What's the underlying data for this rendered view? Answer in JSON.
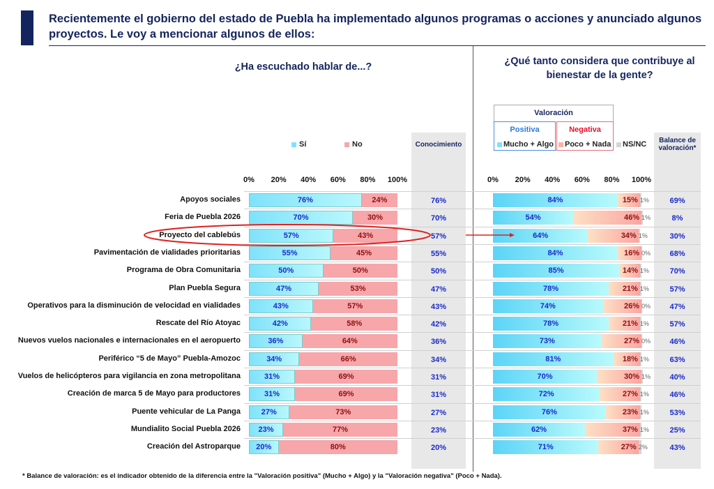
{
  "title": "Recientemente el gobierno del estado de Puebla ha implementado algunos programas o acciones y anunciado algunos proyectos. Le voy a mencionar algunos de ellos:",
  "footnote": "* Balance de valoración: es el indicador obtenido de la diferencia entre la \"Valoración positiva\" (Mucho + Algo) y la \"Valoración negativa\" (Poco + Nada).",
  "colors": {
    "navy": "#14245e",
    "si": "#7fe2fb",
    "no": "#f7a6aa",
    "positive": "#5cd4f7",
    "negative": "#fba5a2",
    "nsnc": "#d5d5d5",
    "highlight": "#e02020"
  },
  "chart_data": [
    {
      "type": "bar",
      "orientation": "horizontal",
      "stacked": true,
      "title": "¿Ha escuchado hablar de...?",
      "xlim": [
        0,
        100
      ],
      "ticks": [
        "0%",
        "20%",
        "40%",
        "60%",
        "80%",
        "100%"
      ],
      "legend": [
        "Sí",
        "No"
      ],
      "extra_column_header": "Conocimiento",
      "categories": [
        "Apoyos sociales",
        "Feria de Puebla 2026",
        "Proyecto del cablebús",
        "Pavimentación de vialidades prioritarias",
        "Programa de Obra Comunitaria",
        "Plan Puebla Segura",
        "Operativos para la disminución de velocidad en vialidades",
        "Rescate del Río Atoyac",
        "Nuevos vuelos nacionales e internacionales en el aeropuerto",
        "Periférico “5 de Mayo” Puebla-Amozoc",
        "Vuelos de helicópteros para vigilancia en zona metropolitana",
        "Creación de marca 5 de Mayo para productores",
        "Puente vehicular de La Panga",
        "Mundialito Social Puebla 2026",
        "Creación del Astroparque"
      ],
      "series": [
        {
          "name": "Sí",
          "values": [
            76,
            70,
            57,
            55,
            50,
            47,
            43,
            42,
            36,
            34,
            31,
            31,
            27,
            23,
            20
          ]
        },
        {
          "name": "No",
          "values": [
            24,
            30,
            43,
            45,
            50,
            53,
            57,
            58,
            64,
            66,
            69,
            69,
            73,
            77,
            80
          ]
        }
      ],
      "highlighted_category": "Proyecto del cablebús"
    },
    {
      "type": "bar",
      "orientation": "horizontal",
      "stacked": true,
      "title": "¿Qué tanto considera que contribuye al bienestar de la gente?",
      "xlim": [
        0,
        100
      ],
      "ticks": [
        "0%",
        "20%",
        "40%",
        "60%",
        "80%",
        "100%"
      ],
      "legend_title": "Valoración",
      "legend_groups": [
        "Positiva",
        "Negativa"
      ],
      "legend": [
        "Mucho + Algo",
        "Poco + Nada",
        "NS/NC"
      ],
      "extra_column_header": "Balance de valoración*",
      "series": [
        {
          "name": "Mucho + Algo",
          "values": [
            84,
            54,
            64,
            84,
            85,
            78,
            74,
            78,
            73,
            81,
            70,
            72,
            76,
            62,
            71
          ]
        },
        {
          "name": "Poco + Nada",
          "values": [
            15,
            46,
            34,
            16,
            14,
            21,
            26,
            21,
            27,
            18,
            30,
            27,
            23,
            37,
            27
          ]
        },
        {
          "name": "NS/NC",
          "values": [
            1,
            1,
            1,
            0,
            1,
            1,
            0,
            1,
            0,
            1,
            1,
            1,
            1,
            1,
            2
          ]
        }
      ],
      "balance": [
        69,
        8,
        30,
        68,
        70,
        57,
        47,
        57,
        46,
        63,
        40,
        46,
        53,
        25,
        43
      ]
    }
  ]
}
